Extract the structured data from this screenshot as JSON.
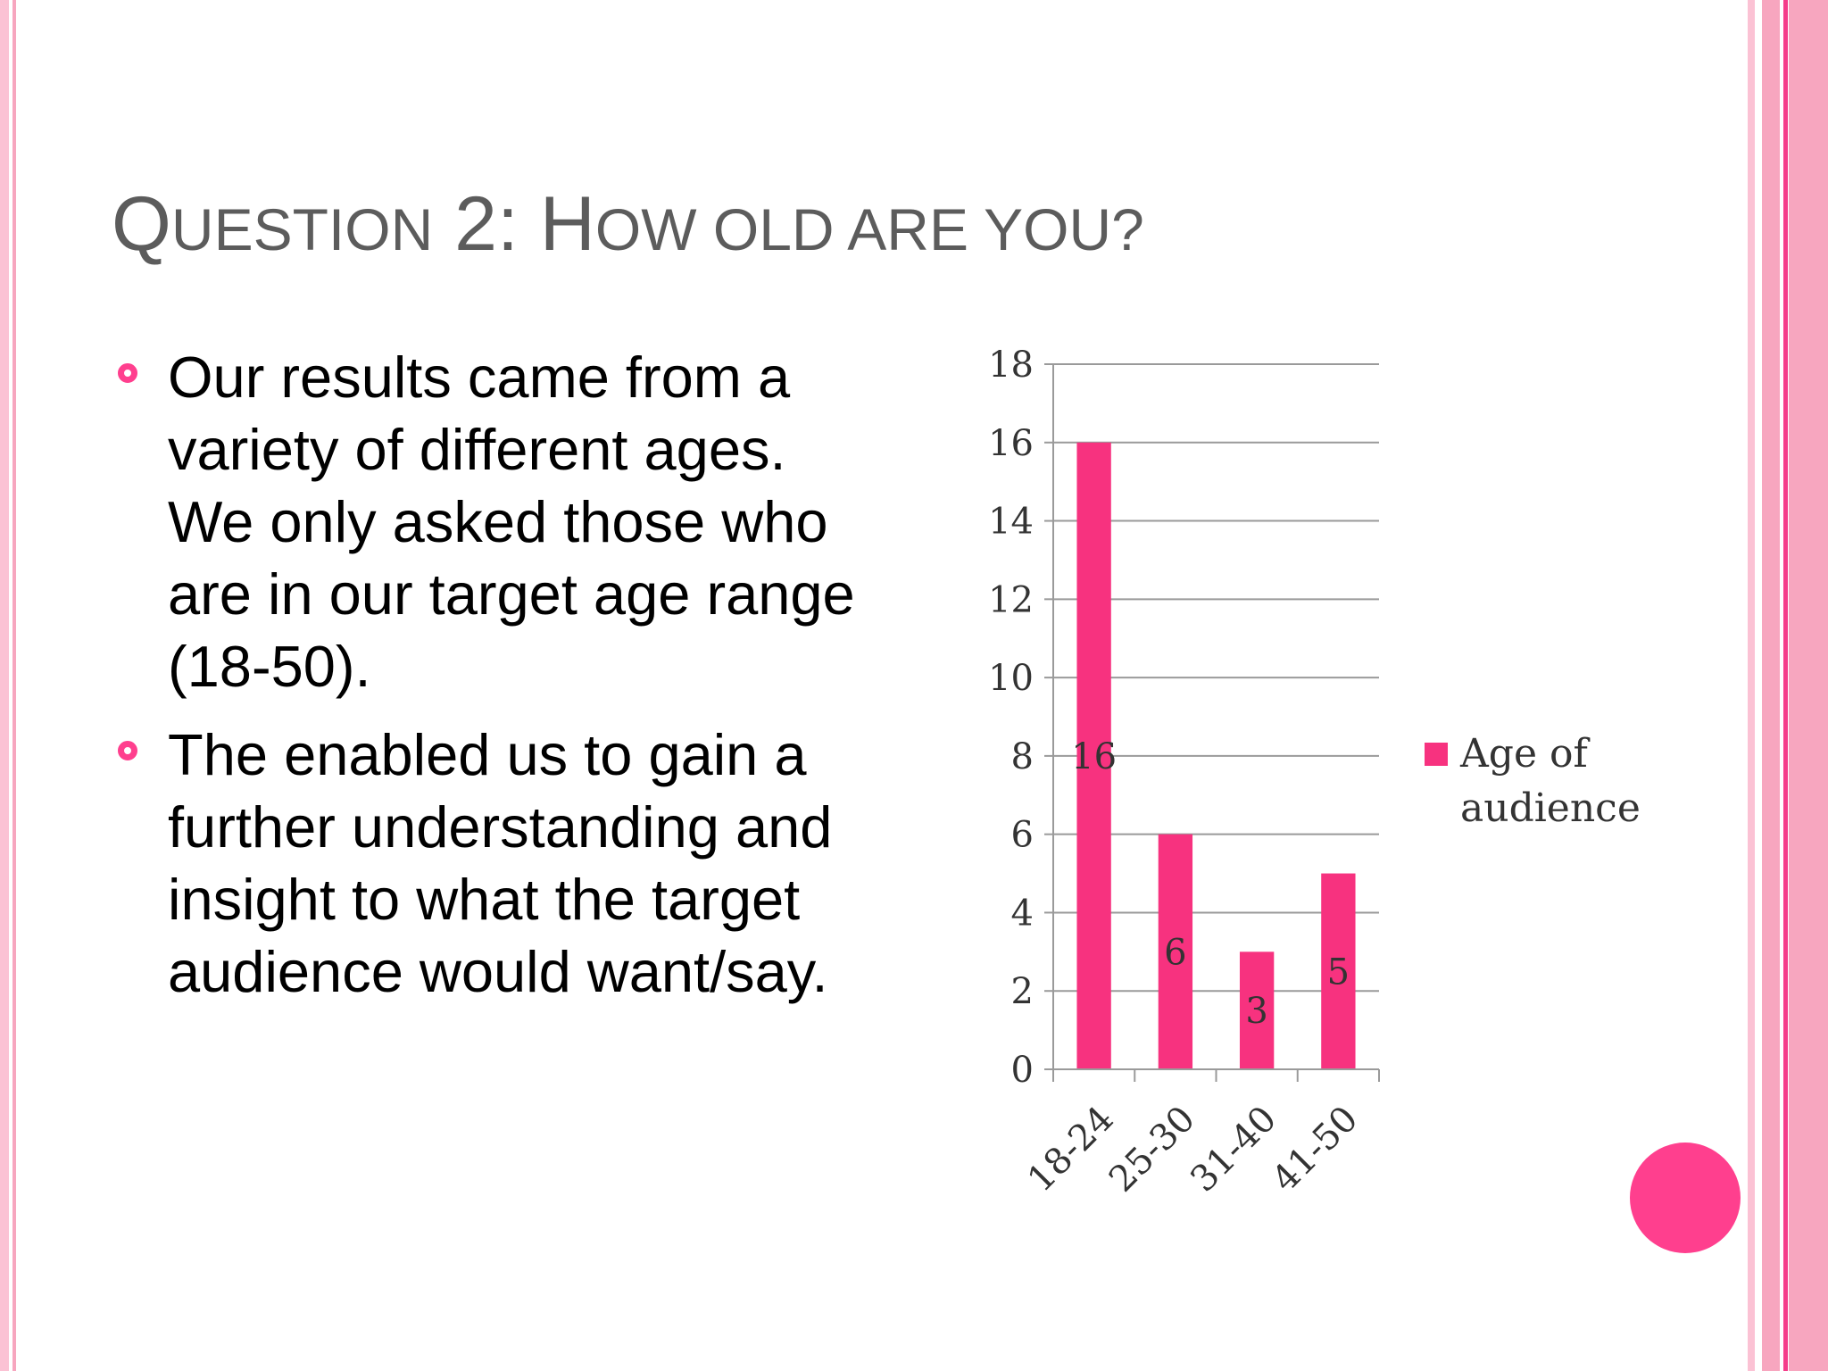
{
  "slide": {
    "title": {
      "part1_cap": "Q",
      "part1_rest": "UESTION",
      "part2": " 2: ",
      "part3_cap": "H",
      "part3_rest": "OW OLD ARE YOU?"
    },
    "bullets": [
      "Our results came from a variety of different ages. We only asked those who are in our target age range (18-50).",
      "The enabled us to gain a further understanding and insight to what the target audience would want/say."
    ],
    "colors": {
      "accent": "#ff3f8e",
      "title": "#5c5c5c",
      "stripe_light": "#fbc2d4",
      "stripe_mid": "#f7a6bf",
      "bar": "#f7327f"
    },
    "decoration": {
      "circle_icon": "pink-circle-icon"
    }
  },
  "chart_data": {
    "type": "bar",
    "categories": [
      "18-24",
      "25-30",
      "31-40",
      "41-50"
    ],
    "series": [
      {
        "name": "Age of audience",
        "values": [
          16,
          6,
          3,
          5
        ]
      }
    ],
    "data_labels": [
      "16",
      "6",
      "3",
      "5"
    ],
    "yticks": [
      "0",
      "2",
      "4",
      "6",
      "8",
      "10",
      "12",
      "14",
      "16",
      "18"
    ],
    "ylim": [
      0,
      18
    ],
    "grid": true,
    "legend": {
      "position": "right",
      "text_line1": "Age of",
      "text_line2": "audience"
    },
    "title": "",
    "xlabel": "",
    "ylabel": ""
  }
}
